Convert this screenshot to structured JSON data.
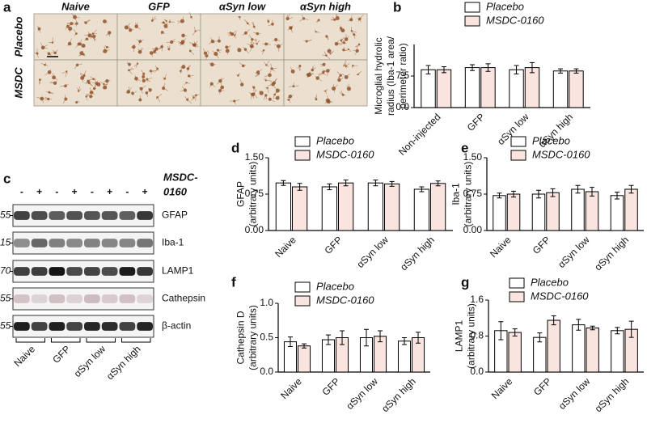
{
  "figure": {
    "panel_a": {
      "letter": "a",
      "columns": [
        "Naive",
        "GFP",
        "αSyn low",
        "αSyn high"
      ],
      "rows": [
        "Placebo",
        "MSDC"
      ]
    },
    "panel_c": {
      "letter": "c",
      "treatment": [
        "MSDC-",
        "0160"
      ],
      "signs": [
        "-",
        "+",
        "-",
        "+",
        "-",
        "+",
        "-",
        "+"
      ],
      "markers": [
        "55",
        "15",
        "70",
        "55",
        "55"
      ],
      "proteins": [
        "GFAP",
        "Iba-1",
        "LAMP1",
        "Cathepsin",
        "β-actin"
      ],
      "groups": [
        "Naive",
        "GFP",
        "αSyn low",
        "αSyn high"
      ]
    }
  },
  "chart_data": [
    {
      "type": "bar",
      "panel": "b",
      "ylabel": [
        "Microglial hydrolic",
        "radius (Iba-1 area/",
        "perimeter ratio)"
      ],
      "categories": [
        "Non-injected",
        "GFP",
        "αSyn low",
        "αSyn high"
      ],
      "series": [
        {
          "name": "Placebo",
          "color": "#ffffff",
          "values": [
            9.0,
            9.5,
            9.0,
            8.7
          ],
          "errors": [
            1.0,
            0.7,
            1.0,
            0.5
          ]
        },
        {
          "name": "MSDC-0160",
          "color": "#f9e4df",
          "values": [
            9.0,
            9.5,
            9.5,
            8.7
          ],
          "errors": [
            0.7,
            0.9,
            1.2,
            0.5
          ]
        }
      ],
      "ylim": [
        0,
        15
      ],
      "yticks": [
        {
          "value": 0,
          "label": "0.0"
        },
        7.5
      ]
    },
    {
      "type": "bar",
      "panel": "d",
      "ylabel": [
        "GFAP",
        "(arbitrary units)"
      ],
      "categories": [
        "Naive",
        "GFP",
        "αSyn low",
        "αSyn high"
      ],
      "series": [
        {
          "name": "Placebo",
          "color": "#ffffff",
          "values": [
            0.98,
            0.9,
            0.98,
            0.85
          ],
          "errors": [
            0.05,
            0.06,
            0.06,
            0.05
          ]
        },
        {
          "name": "MSDC-0160",
          "color": "#f9e4df",
          "values": [
            0.9,
            0.98,
            0.96,
            0.97
          ],
          "errors": [
            0.07,
            0.06,
            0.05,
            0.05
          ]
        }
      ],
      "ylim": [
        0,
        1.5
      ],
      "yticks": [
        {
          "value": 0,
          "label": "0.00"
        },
        0.75,
        {
          "value": 1.5,
          "label": "1.50"
        }
      ]
    },
    {
      "type": "bar",
      "panel": "e",
      "ylabel": [
        "Iba-1",
        "(arbitrary units)"
      ],
      "categories": [
        "Naive",
        "GFP",
        "αSyn low",
        "αSyn high"
      ],
      "series": [
        {
          "name": "Placebo",
          "color": "#ffffff",
          "values": [
            0.72,
            0.75,
            0.85,
            0.72
          ],
          "errors": [
            0.05,
            0.08,
            0.08,
            0.07
          ]
        },
        {
          "name": "MSDC-0160",
          "color": "#f9e4df",
          "values": [
            0.75,
            0.78,
            0.8,
            0.85
          ],
          "errors": [
            0.06,
            0.08,
            0.09,
            0.08
          ]
        }
      ],
      "ylim": [
        0,
        1.5
      ],
      "yticks": [
        {
          "value": 0,
          "label": "0.00"
        },
        0.75,
        {
          "value": 1.5,
          "label": "1.50"
        }
      ]
    },
    {
      "type": "bar",
      "panel": "f",
      "ylabel": [
        "Cathepsin D",
        "(arbitrary units)"
      ],
      "categories": [
        "Naive",
        "GFP",
        "αSyn low",
        "αSyn high"
      ],
      "series": [
        {
          "name": "Placebo",
          "color": "#ffffff",
          "values": [
            0.44,
            0.47,
            0.5,
            0.45
          ],
          "errors": [
            0.07,
            0.07,
            0.12,
            0.05
          ]
        },
        {
          "name": "MSDC-0160",
          "color": "#f9e4df",
          "values": [
            0.38,
            0.5,
            0.52,
            0.5
          ],
          "errors": [
            0.03,
            0.1,
            0.08,
            0.08
          ]
        }
      ],
      "ylim": [
        0,
        1.0
      ],
      "yticks": [
        {
          "value": 0,
          "label": "0.0"
        },
        0.5,
        {
          "value": 1.0,
          "label": "1.0"
        }
      ]
    },
    {
      "type": "bar",
      "panel": "g",
      "ylabel": [
        "LAMP1",
        "(arbitrary units)"
      ],
      "categories": [
        "Naive",
        "GFP",
        "αSyn low",
        "αSyn high"
      ],
      "series": [
        {
          "name": "Placebo",
          "color": "#ffffff",
          "values": [
            0.92,
            0.77,
            1.05,
            0.92
          ],
          "errors": [
            0.2,
            0.1,
            0.12,
            0.07
          ]
        },
        {
          "name": "MSDC-0160",
          "color": "#f9e4df",
          "values": [
            0.88,
            1.15,
            0.98,
            0.95
          ],
          "errors": [
            0.08,
            0.1,
            0.04,
            0.18
          ]
        }
      ],
      "ylim": [
        0,
        1.6
      ],
      "yticks": [
        {
          "value": 0,
          "label": "0.0"
        },
        0.8,
        1.6
      ]
    }
  ]
}
